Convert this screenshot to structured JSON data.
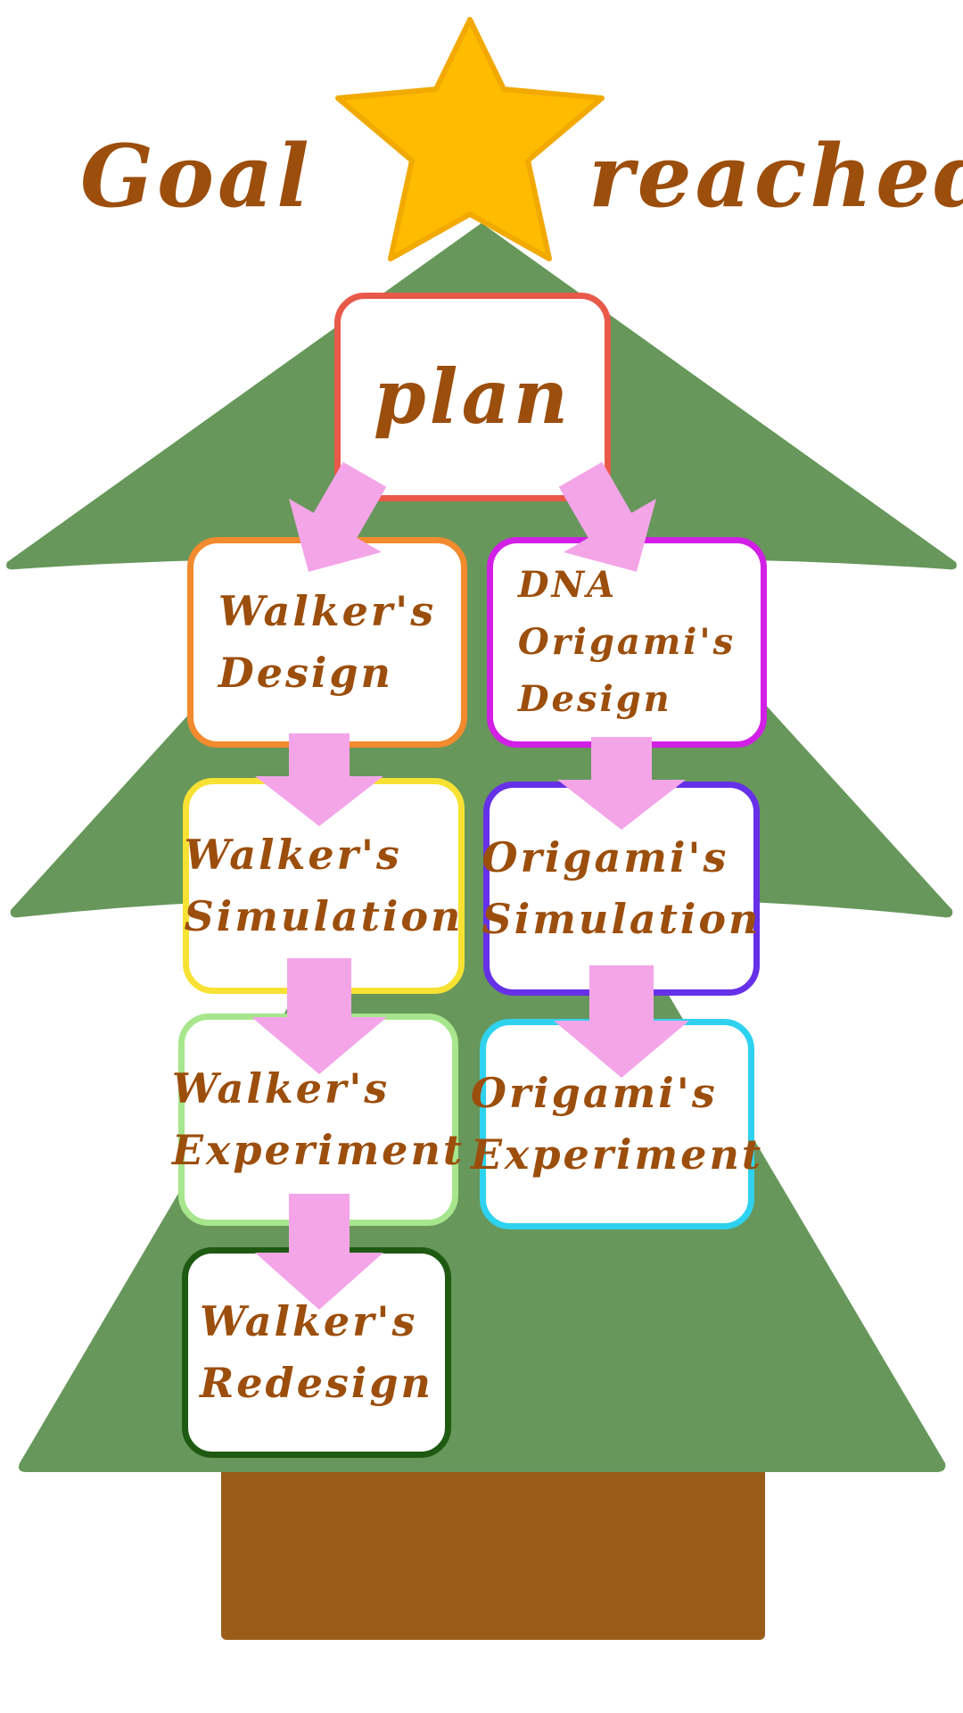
{
  "title": {
    "left": "Goal",
    "right": "reached"
  },
  "colors": {
    "tree": "#67975b",
    "trunk": "#9a5c18",
    "star": "#ffbb00",
    "arrow": "#f4a5e8",
    "text": "#9c4e0c"
  },
  "nodes": [
    {
      "id": "plan",
      "label": "plan",
      "border": "#e8594a"
    },
    {
      "id": "walker-design",
      "label": "Walker's\nDesign",
      "border": "#f28a2e"
    },
    {
      "id": "dna-design",
      "label": "DNA\nOrigami's\nDesign",
      "border": "#d21fe6"
    },
    {
      "id": "walker-simulation",
      "label": "Walker's\nSimulation",
      "border": "#f7e233"
    },
    {
      "id": "origami-simulation",
      "label": "Origami's\nSimulation",
      "border": "#6630e8"
    },
    {
      "id": "walker-experiment",
      "label": "Walker's\nExperiment",
      "border": "#a7e68c"
    },
    {
      "id": "origami-experiment",
      "label": "Origami's\nExperiment",
      "border": "#2ed2ef"
    },
    {
      "id": "walker-redesign",
      "label": "Walker's\nRedesign",
      "border": "#1e5a12"
    }
  ],
  "edges": [
    {
      "from": "plan",
      "to": "walker-design"
    },
    {
      "from": "plan",
      "to": "dna-design"
    },
    {
      "from": "walker-design",
      "to": "walker-simulation"
    },
    {
      "from": "dna-design",
      "to": "origami-simulation"
    },
    {
      "from": "walker-simulation",
      "to": "walker-experiment"
    },
    {
      "from": "origami-simulation",
      "to": "origami-experiment"
    },
    {
      "from": "walker-experiment",
      "to": "walker-redesign"
    }
  ]
}
